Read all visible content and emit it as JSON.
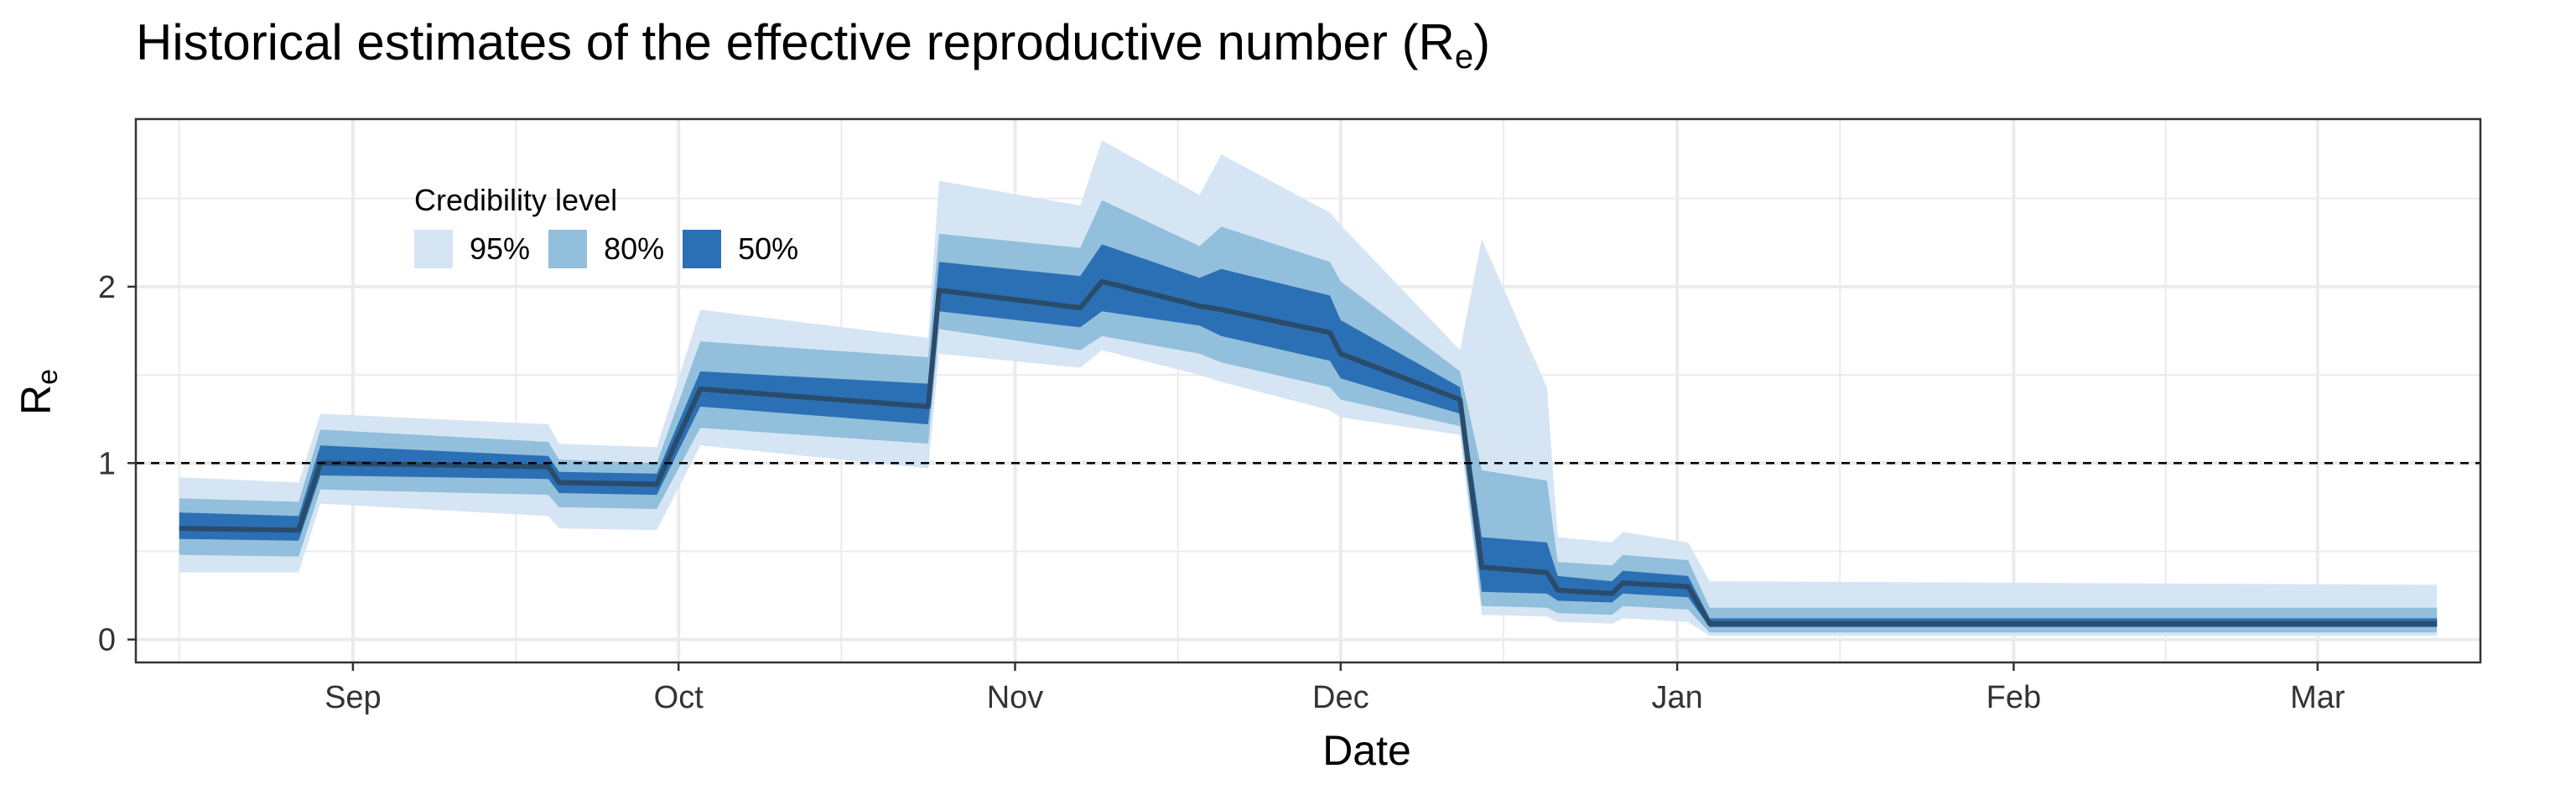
{
  "colors": {
    "band95": "#d6e5f4",
    "band80": "#92bfdb",
    "band50": "#2b70b4",
    "median": "#2a4b6b",
    "grid": "#ebebeb",
    "threshold": "#000000"
  },
  "chart_data": {
    "type": "area",
    "title_main": "Historical estimates of the effective reproductive number (R",
    "title_sub": "e",
    "title_close": ")",
    "xlabel": "Date",
    "ylabel_main": "R",
    "ylabel_sub": "e",
    "x_ticks": [
      "Sep",
      "Oct",
      "Nov",
      "Dec",
      "Jan",
      "Feb",
      "Mar"
    ],
    "y_ticks": [
      "0",
      "1",
      "2"
    ],
    "ylim": [
      -0.13,
      2.95
    ],
    "threshold_y": 1,
    "legend": {
      "title": "Credibility level",
      "placement": "top-left",
      "items": [
        "95%",
        "80%",
        "50%"
      ]
    },
    "series": [
      {
        "date": "2020-08-16",
        "median": 0.63,
        "lo50": 0.57,
        "hi50": 0.72,
        "lo80": 0.48,
        "hi80": 0.8,
        "lo95": 0.38,
        "hi95": 0.92
      },
      {
        "date": "2020-08-27",
        "median": 0.62,
        "lo50": 0.56,
        "hi50": 0.7,
        "lo80": 0.47,
        "hi80": 0.78,
        "lo95": 0.38,
        "hi95": 0.89
      },
      {
        "date": "2020-08-29",
        "median": 1.0,
        "lo50": 0.93,
        "hi50": 1.1,
        "lo80": 0.85,
        "hi80": 1.19,
        "lo95": 0.77,
        "hi95": 1.28
      },
      {
        "date": "2020-09-19",
        "median": 0.98,
        "lo50": 0.91,
        "hi50": 1.04,
        "lo80": 0.82,
        "hi80": 1.12,
        "lo95": 0.7,
        "hi95": 1.22
      },
      {
        "date": "2020-09-20",
        "median": 0.89,
        "lo50": 0.83,
        "hi50": 0.95,
        "lo80": 0.75,
        "hi80": 1.02,
        "lo95": 0.63,
        "hi95": 1.11
      },
      {
        "date": "2020-09-29",
        "median": 0.88,
        "lo50": 0.82,
        "hi50": 0.94,
        "lo80": 0.74,
        "hi80": 1.0,
        "lo95": 0.62,
        "hi95": 1.09
      },
      {
        "date": "2020-10-03",
        "median": 1.42,
        "lo50": 1.32,
        "hi50": 1.52,
        "lo80": 1.2,
        "hi80": 1.69,
        "lo95": 1.1,
        "hi95": 1.87
      },
      {
        "date": "2020-10-24",
        "median": 1.32,
        "lo50": 1.22,
        "hi50": 1.45,
        "lo80": 1.11,
        "hi80": 1.6,
        "lo95": 0.97,
        "hi95": 1.71
      },
      {
        "date": "2020-10-25",
        "median": 1.98,
        "lo50": 1.86,
        "hi50": 2.14,
        "lo80": 1.76,
        "hi80": 2.3,
        "lo95": 1.62,
        "hi95": 2.6
      },
      {
        "date": "2020-11-07",
        "median": 1.88,
        "lo50": 1.77,
        "hi50": 2.06,
        "lo80": 1.64,
        "hi80": 2.22,
        "lo95": 1.54,
        "hi95": 2.46
      },
      {
        "date": "2020-11-09",
        "median": 2.03,
        "lo50": 1.86,
        "hi50": 2.24,
        "lo80": 1.72,
        "hi80": 2.49,
        "lo95": 1.64,
        "hi95": 2.83
      },
      {
        "date": "2020-11-18",
        "median": 1.89,
        "lo50": 1.78,
        "hi50": 2.05,
        "lo80": 1.62,
        "hi80": 2.23,
        "lo95": 1.5,
        "hi95": 2.52
      },
      {
        "date": "2020-11-20",
        "median": 1.87,
        "lo50": 1.72,
        "hi50": 2.1,
        "lo80": 1.57,
        "hi80": 2.34,
        "lo95": 1.46,
        "hi95": 2.75
      },
      {
        "date": "2020-11-30",
        "median": 1.74,
        "lo50": 1.58,
        "hi50": 1.95,
        "lo80": 1.43,
        "hi80": 2.14,
        "lo95": 1.3,
        "hi95": 2.42
      },
      {
        "date": "2020-12-01",
        "median": 1.62,
        "lo50": 1.48,
        "hi50": 1.81,
        "lo80": 1.36,
        "hi80": 2.03,
        "lo95": 1.26,
        "hi95": 2.35
      },
      {
        "date": "2020-12-12",
        "median": 1.36,
        "lo50": 1.28,
        "hi50": 1.43,
        "lo80": 1.21,
        "hi80": 1.52,
        "lo95": 1.16,
        "hi95": 1.64
      },
      {
        "date": "2020-12-14",
        "median": 0.41,
        "lo50": 0.27,
        "hi50": 0.58,
        "lo80": 0.19,
        "hi80": 0.96,
        "lo95": 0.14,
        "hi95": 2.27
      },
      {
        "date": "2020-12-20",
        "median": 0.38,
        "lo50": 0.26,
        "hi50": 0.55,
        "lo80": 0.18,
        "hi80": 0.9,
        "lo95": 0.13,
        "hi95": 1.43
      },
      {
        "date": "2020-12-21",
        "median": 0.28,
        "lo50": 0.22,
        "hi50": 0.36,
        "lo80": 0.15,
        "hi80": 0.44,
        "lo95": 0.1,
        "hi95": 0.58
      },
      {
        "date": "2020-12-26",
        "median": 0.26,
        "lo50": 0.21,
        "hi50": 0.33,
        "lo80": 0.14,
        "hi80": 0.42,
        "lo95": 0.09,
        "hi95": 0.55
      },
      {
        "date": "2020-12-27",
        "median": 0.32,
        "lo50": 0.26,
        "hi50": 0.39,
        "lo80": 0.19,
        "hi80": 0.48,
        "lo95": 0.12,
        "hi95": 0.61
      },
      {
        "date": "2021-01-02",
        "median": 0.3,
        "lo50": 0.24,
        "hi50": 0.36,
        "lo80": 0.17,
        "hi80": 0.45,
        "lo95": 0.1,
        "hi95": 0.55
      },
      {
        "date": "2021-01-04",
        "median": 0.09,
        "lo50": 0.07,
        "hi50": 0.12,
        "lo80": 0.04,
        "hi80": 0.18,
        "lo95": 0.02,
        "hi95": 0.33
      },
      {
        "date": "2021-03-12",
        "median": 0.09,
        "lo50": 0.07,
        "hi50": 0.12,
        "lo80": 0.04,
        "hi80": 0.18,
        "lo95": 0.02,
        "hi95": 0.31
      }
    ]
  }
}
